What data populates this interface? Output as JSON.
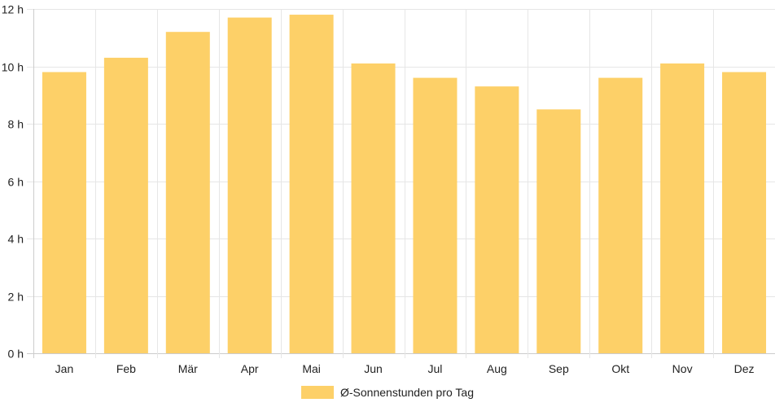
{
  "chart_data": {
    "type": "bar",
    "categories": [
      "Jan",
      "Feb",
      "Mär",
      "Apr",
      "Mai",
      "Jun",
      "Jul",
      "Aug",
      "Sep",
      "Okt",
      "Nov",
      "Dez"
    ],
    "series": [
      {
        "name": "Ø-Sonnenstunden pro Tag",
        "values": [
          9.8,
          10.3,
          11.2,
          11.7,
          11.8,
          10.1,
          9.6,
          9.3,
          8.5,
          9.6,
          10.1,
          9.8
        ]
      }
    ],
    "ylim": [
      0,
      12
    ],
    "ytick_step": 2,
    "y_unit_suffix": " h",
    "grid": true,
    "legend_position": "bottom",
    "colors": {
      "bar": "#fdd068",
      "grid": "#e6e6e6",
      "axis": "#cccccc",
      "text": "#222222"
    }
  }
}
